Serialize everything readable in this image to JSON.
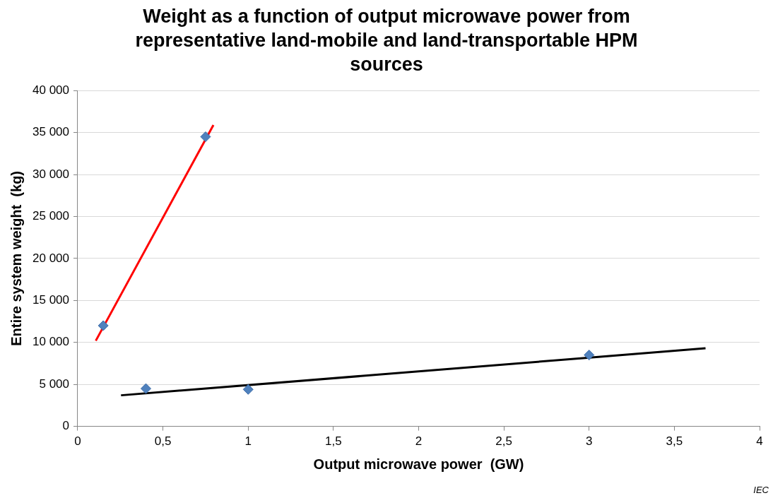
{
  "chart_data": {
    "type": "scatter",
    "title": "Weight as a function of output microwave power from representative land-mobile and land-transportable HPM sources",
    "xlabel": "Output microwave power  (GW)",
    "ylabel": "Entire system weight  (kg)",
    "annotations": [
      "IEC"
    ],
    "x": [
      0.15,
      0.4,
      1,
      0.75,
      3
    ],
    "marker": "diamond",
    "grid": "y",
    "legend": false,
    "series": [
      {
        "type": "scatter",
        "color": "#4f81bd",
        "values": [
          12000,
          4500,
          4400,
          34500,
          8500
        ]
      },
      {
        "type": "line",
        "color": "#ff0000",
        "x": [
          0.106,
          0.796
        ],
        "values": [
          10200,
          35900
        ],
        "marker": "none"
      },
      {
        "type": "line",
        "color": "#000000",
        "x": [
          0.254,
          3.683
        ],
        "values": [
          3700,
          9300
        ],
        "marker": "none"
      }
    ],
    "xlim": [
      0,
      4
    ],
    "xticks": [
      0,
      {
        "value": 0.5,
        "label": "0,5"
      },
      1,
      {
        "value": 1.5,
        "label": "1,5"
      },
      2,
      {
        "value": 2.5,
        "label": "2,5"
      },
      3,
      {
        "value": 3.5,
        "label": "3,5"
      },
      4
    ],
    "ylim": [
      0,
      40000
    ],
    "yticks": [
      0,
      {
        "value": 5000,
        "label": "5 000"
      },
      {
        "value": 10000,
        "label": "10 000"
      },
      {
        "value": 15000,
        "label": "15 000"
      },
      {
        "value": 20000,
        "label": "20 000"
      },
      {
        "value": 25000,
        "label": "25 000"
      },
      {
        "value": 30000,
        "label": "30 000"
      },
      {
        "value": 35000,
        "label": "35 000"
      },
      {
        "value": 40000,
        "label": "40 000"
      }
    ]
  }
}
